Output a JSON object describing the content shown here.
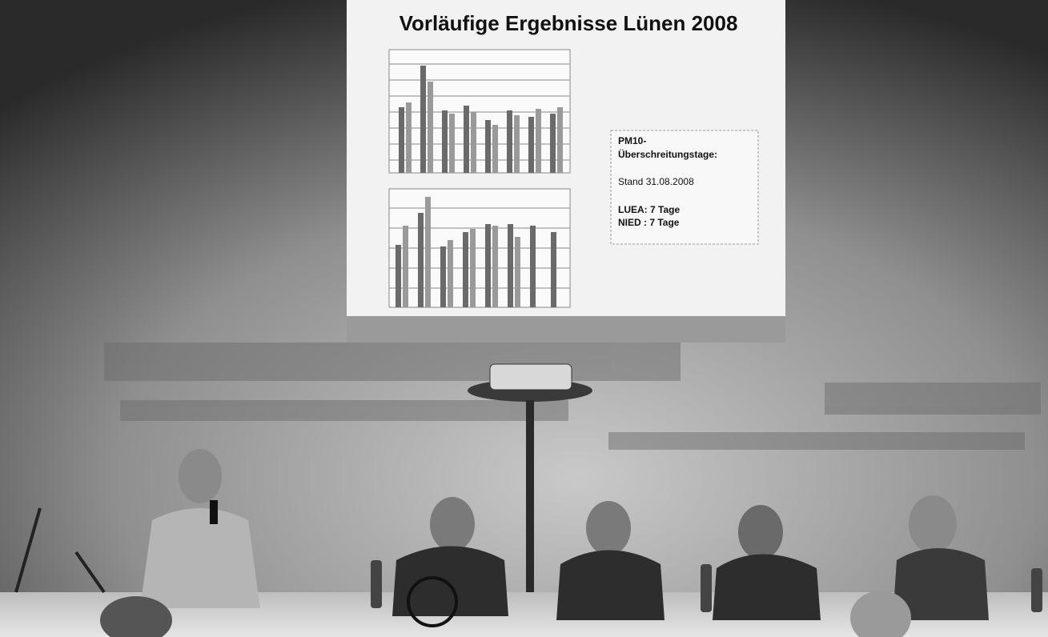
{
  "slide": {
    "title": "Vorläufige Ergebnisse Lünen 2008",
    "info_box": {
      "lines": [
        "PM10-",
        "Überschreitungstage:",
        "Stand 31.08.2008",
        "LUEA: 7 Tage",
        "NIED : 7 Tage"
      ]
    }
  }
}
